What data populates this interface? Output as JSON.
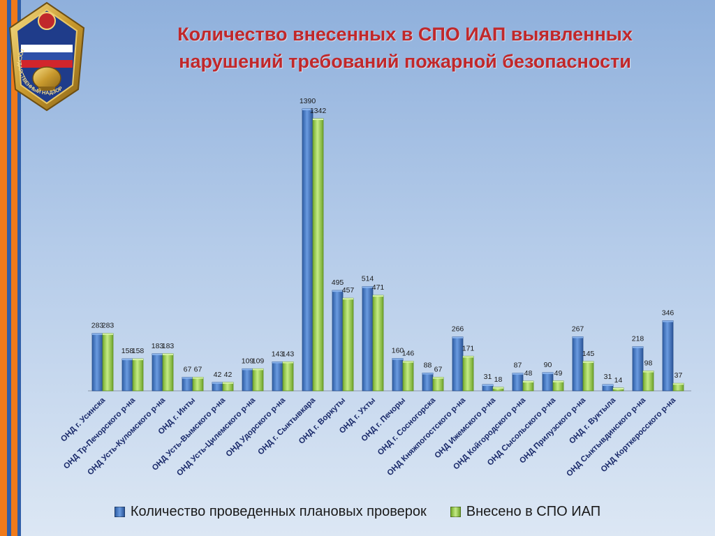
{
  "title_line1": "Количество внесенных в СПО ИАП выявленных",
  "title_line2": "нарушений требований пожарной безопасности",
  "emblem": {
    "icon": "fire-supervision-emblem-icon",
    "text": "ГОСУДАРСТВЕННЫЙ НАДЗОР"
  },
  "colors": {
    "series1": "#4a7fc4",
    "series2": "#9dcf4c",
    "title": "#c0282b",
    "stripe_orange": "#f07a1a",
    "stripe_blue": "#2f5ea8"
  },
  "chart_data": {
    "type": "bar",
    "title": "Количество внесенных в СПО ИАП выявленных нарушений требований пожарной безопасности",
    "categories": [
      "ОНД г. Усинска",
      "ОНД Тр-Печорского р-на",
      "ОНД Усть-Куломского р-на",
      "ОНД г. Инты",
      "ОНД Усть-Вымского р-на",
      "ОНД Усть-Цилемского р-на",
      "ОНД Удорского р-на",
      "ОНД г. Сыктывкара",
      "ОНД г. Воркуты",
      "ОНД г. Ухты",
      "ОНД г. Печоры",
      "ОНД г. Сосногорска",
      "ОНД Княжпогостского р-на",
      "ОНД Ижемского р-на",
      "ОНД Койгородского р-на",
      "ОНД Сысольского р-на",
      "ОНД Прилузского р-на",
      "ОНД г. Вуктыла",
      "ОНД Сыктывдинского р-на",
      "ОНД Корткеросского р-на"
    ],
    "series": [
      {
        "name": "Количество проведенных плановых проверок",
        "values": [
          283,
          158,
          183,
          67,
          42,
          109,
          143,
          1390,
          495,
          514,
          160,
          88,
          266,
          31,
          87,
          90,
          267,
          31,
          218,
          346
        ]
      },
      {
        "name": "Внесено в СПО ИАП",
        "values": [
          283,
          158,
          183,
          67,
          42,
          109,
          143,
          1342,
          457,
          471,
          146,
          67,
          171,
          18,
          48,
          49,
          145,
          14,
          98,
          37
        ]
      }
    ],
    "ylim": [
      0,
      1390
    ],
    "grid": false,
    "legend_position": "bottom",
    "data_labels": true
  }
}
